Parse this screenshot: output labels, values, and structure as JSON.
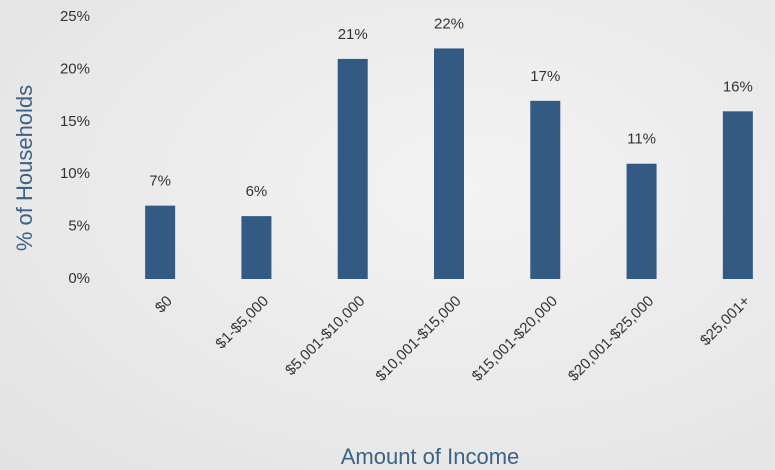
{
  "chart_data": {
    "type": "bar",
    "x_label": "Amount of Income",
    "y_label": "% of Households",
    "categories": [
      "$0",
      "$1-$5,000",
      "$5,001-$10,000",
      "$10,001-$15,000",
      "$15,001-$20,000",
      "$20,001-$25,000",
      "$25,001+"
    ],
    "values": [
      7,
      6,
      21,
      22,
      17,
      11,
      16
    ],
    "value_labels": [
      "7%",
      "6%",
      "21%",
      "22%",
      "17%",
      "11%",
      "16%"
    ],
    "color": "#335a82",
    "ylim": [
      0,
      25
    ],
    "yticks": [
      {
        "value": 0,
        "label": "0%"
      },
      {
        "value": 5,
        "label": "5%"
      },
      {
        "value": 10,
        "label": "10%"
      },
      {
        "value": 15,
        "label": "15%"
      },
      {
        "value": 20,
        "label": "20%"
      },
      {
        "value": 25,
        "label": "25%"
      }
    ],
    "grid": false
  }
}
